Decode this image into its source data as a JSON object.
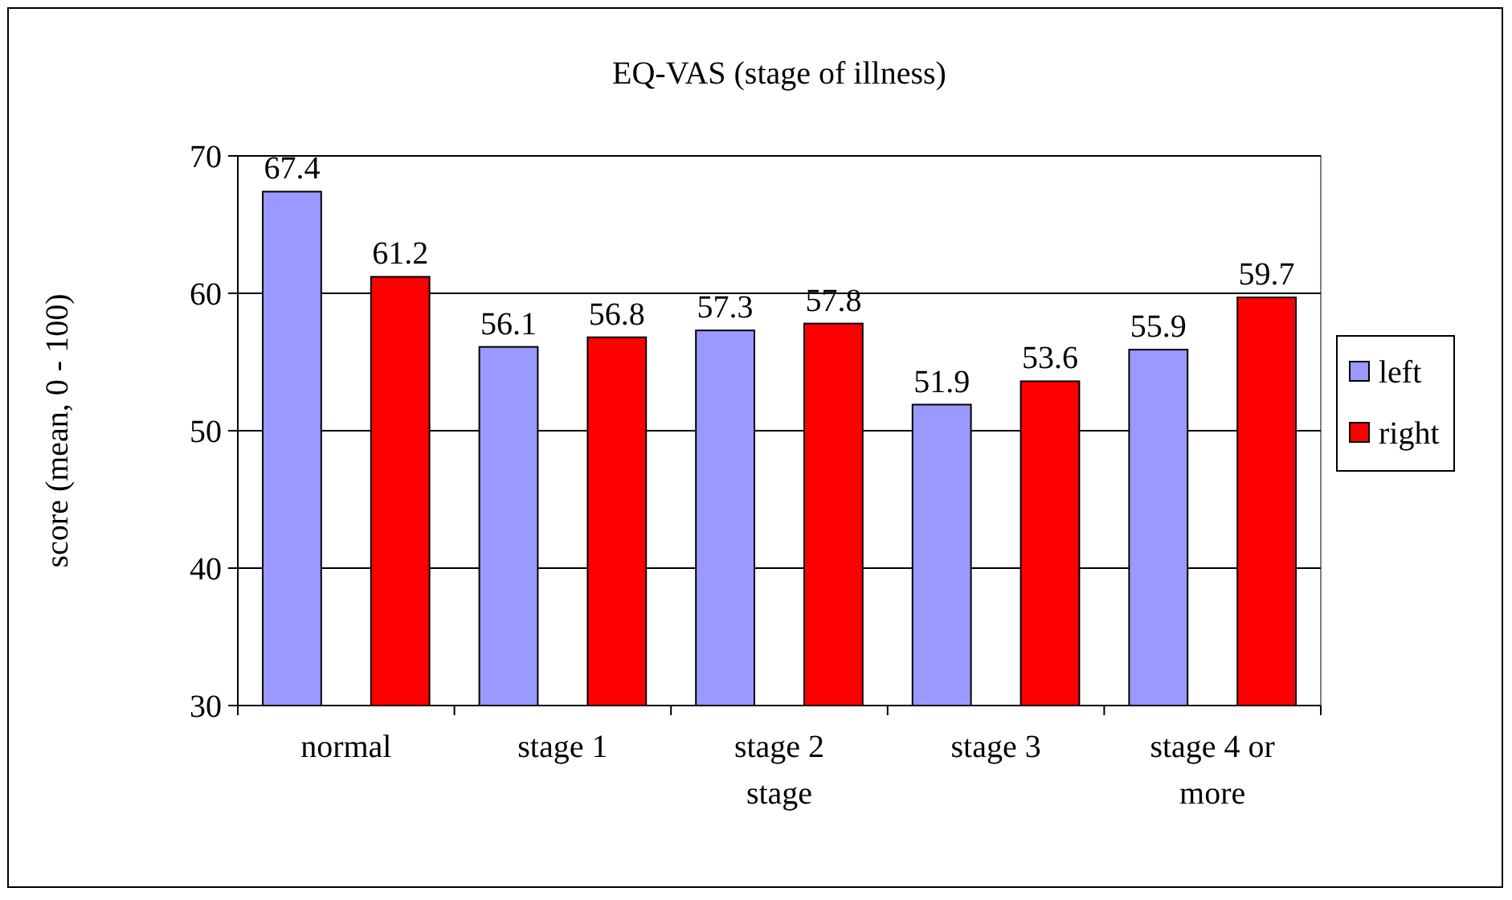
{
  "chart_data": {
    "type": "bar",
    "title": "EQ-VAS (stage of illness)",
    "ylabel": "score (mean, 0 - 100)",
    "categories": [
      "normal",
      "stage 1",
      "stage 2 stage",
      "stage 3",
      "stage 4 or more"
    ],
    "series": [
      {
        "name": "left",
        "color": "#9999ff",
        "values": [
          67.4,
          56.1,
          57.3,
          51.9,
          55.9
        ]
      },
      {
        "name": "right",
        "color": "#ff0000",
        "values": [
          61.2,
          56.8,
          57.8,
          53.6,
          59.7
        ]
      }
    ],
    "ylim": [
      30,
      70
    ],
    "yticks": [
      30,
      40,
      50,
      60,
      70
    ],
    "grid": "y",
    "legend": "right",
    "data_labels": true
  }
}
